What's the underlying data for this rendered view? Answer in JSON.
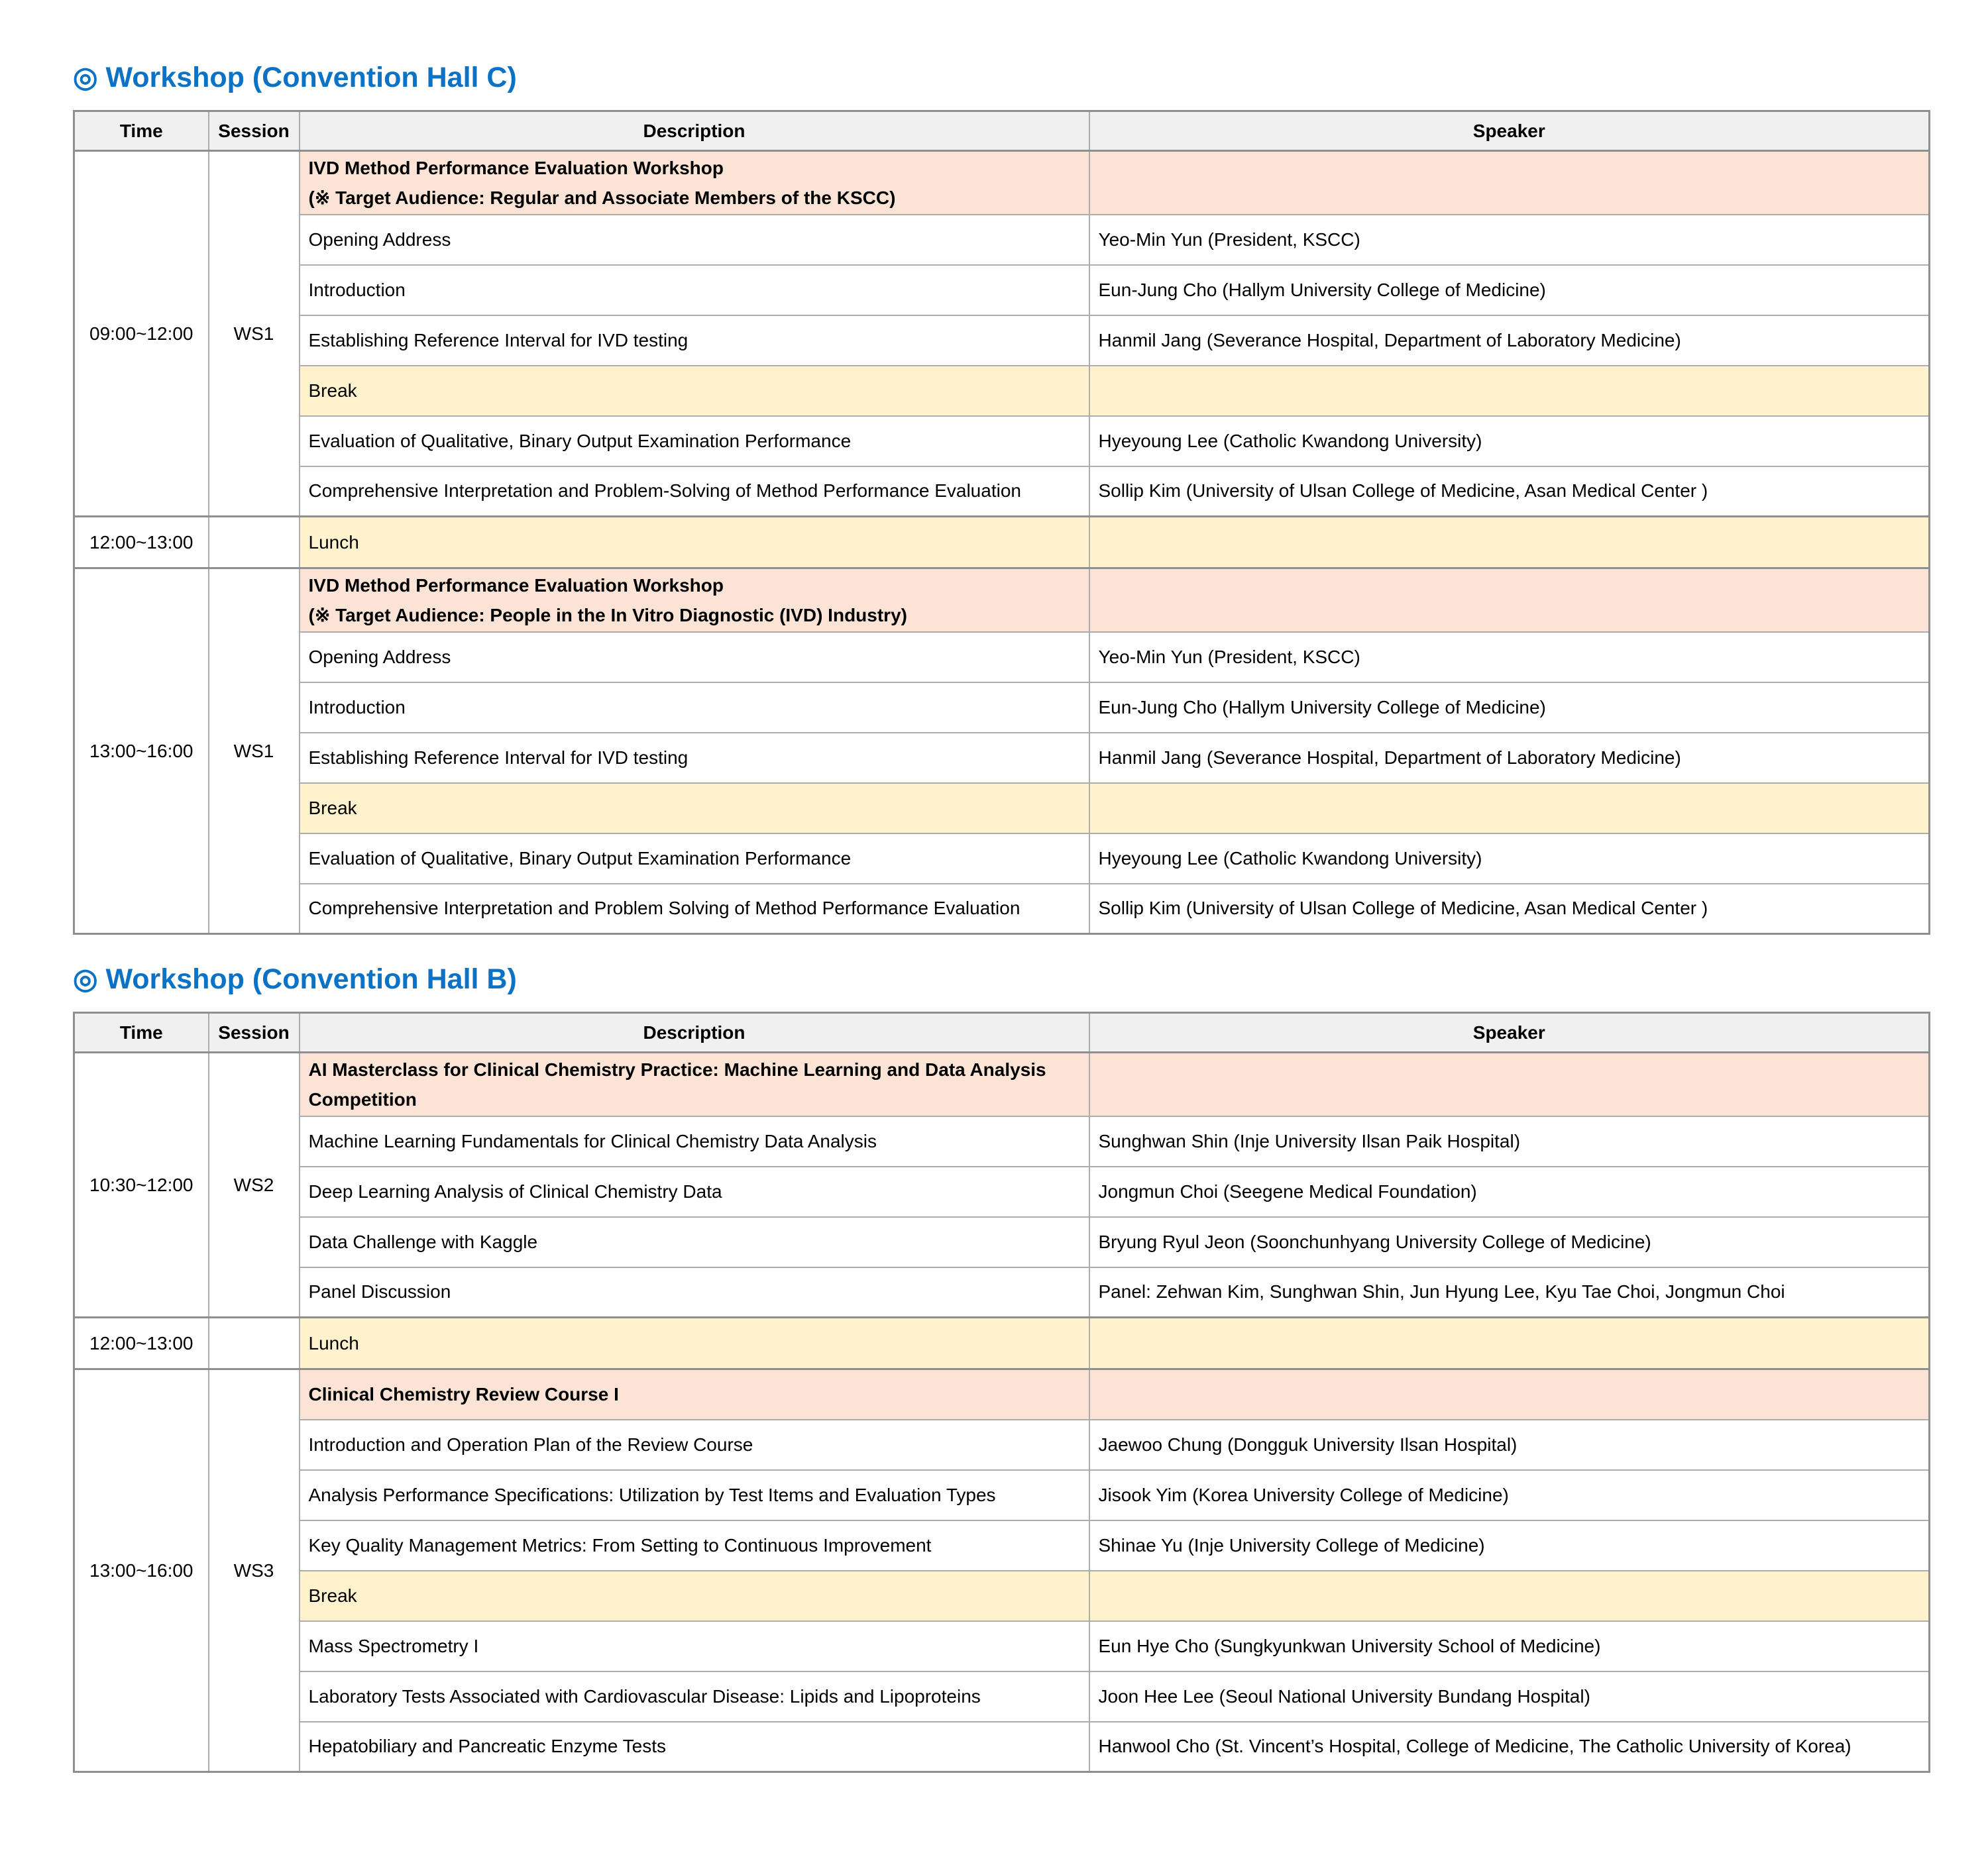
{
  "colors": {
    "title_blue": "#0c72c6",
    "session_header_pink": "#fbe4d5",
    "break_yellow": "#fff2cc",
    "column_header_grey": "#f0f0f0"
  },
  "workshop_c": {
    "title": "◎ Workshop (Convention Hall C)",
    "columns": {
      "time": "Time",
      "session": "Session",
      "description": "Description",
      "speaker": "Speaker"
    },
    "morning": {
      "time": "09:00~12:00",
      "session": "WS1",
      "header_line1": "IVD Method Performance Evaluation Workshop",
      "header_line2": "(※ Target Audience: Regular and Associate Members of the KSCC)",
      "items": [
        {
          "description": "Opening Address",
          "speaker": "Yeo-Min Yun (President, KSCC)"
        },
        {
          "description": "Introduction",
          "speaker": "Eun-Jung Cho (Hallym University College of Medicine)"
        },
        {
          "description": "Establishing Reference Interval for IVD testing",
          "speaker": "Hanmil Jang (Severance Hospital, Department of Laboratory Medicine)"
        },
        {
          "description": "Break"
        },
        {
          "description": "Evaluation of Qualitative, Binary Output Examination Performance",
          "speaker": "Hyeyoung Lee (Catholic Kwandong University)"
        },
        {
          "description": "Comprehensive Interpretation and Problem-Solving of Method Performance Evaluation",
          "speaker": "Sollip Kim (University of Ulsan College of Medicine, Asan Medical Center )"
        }
      ]
    },
    "lunch": {
      "time": "12:00~13:00",
      "session": "",
      "label": "Lunch"
    },
    "afternoon": {
      "time": "13:00~16:00",
      "session": "WS1",
      "header_line1": "IVD Method Performance Evaluation Workshop",
      "header_line2": "(※ Target Audience: People in the In Vitro Diagnostic (IVD) Industry)",
      "items": [
        {
          "description": "Opening Address",
          "speaker": "Yeo-Min Yun (President, KSCC)"
        },
        {
          "description": "Introduction",
          "speaker": "Eun-Jung Cho (Hallym University College of Medicine)"
        },
        {
          "description": "Establishing Reference Interval for IVD testing",
          "speaker": "Hanmil Jang (Severance Hospital, Department of Laboratory Medicine)"
        },
        {
          "description": "Break"
        },
        {
          "description": "Evaluation of Qualitative, Binary Output Examination Performance",
          "speaker": "Hyeyoung Lee (Catholic Kwandong University)"
        },
        {
          "description": "Comprehensive Interpretation and Problem Solving of Method Performance Evaluation",
          "speaker": "Sollip Kim (University of Ulsan College of Medicine, Asan Medical Center )"
        }
      ]
    }
  },
  "workshop_b": {
    "title": "◎ Workshop (Convention Hall B)",
    "columns": {
      "time": "Time",
      "session": "Session",
      "description": "Description",
      "speaker": "Speaker"
    },
    "morning": {
      "time": "10:30~12:00",
      "session": "WS2",
      "header_line1": "AI Masterclass for Clinical Chemistry Practice: Machine Learning and Data Analysis",
      "header_line2": "Competition",
      "items": [
        {
          "description": "Machine Learning Fundamentals for Clinical Chemistry Data Analysis",
          "speaker": "Sunghwan Shin (Inje University Ilsan Paik Hospital)"
        },
        {
          "description": "Deep Learning Analysis of Clinical Chemistry Data",
          "speaker": "Jongmun Choi (Seegene Medical Foundation)"
        },
        {
          "description": "Data Challenge with Kaggle",
          "speaker": "Bryung Ryul Jeon (Soonchunhyang University College of Medicine)"
        },
        {
          "description": "Panel Discussion",
          "speaker": "Panel: Zehwan Kim, Sunghwan Shin, Jun Hyung Lee, Kyu Tae Choi, Jongmun Choi"
        }
      ]
    },
    "lunch": {
      "time": "12:00~13:00",
      "session": "",
      "label": "Lunch"
    },
    "afternoon": {
      "time": "13:00~16:00",
      "session": "WS3",
      "header_line1": "Clinical Chemistry Review Course I",
      "items": [
        {
          "description": "Introduction and Operation Plan of the Review Course",
          "speaker": "Jaewoo Chung (Dongguk University Ilsan Hospital)"
        },
        {
          "description": "Analysis Performance Specifications: Utilization by Test Items and Evaluation Types",
          "speaker": "Jisook Yim (Korea University College of Medicine)"
        },
        {
          "description": "Key Quality Management Metrics: From Setting to Continuous Improvement",
          "speaker": "Shinae Yu (Inje University College of Medicine)"
        },
        {
          "description": "Break"
        },
        {
          "description": "Mass Spectrometry I",
          "speaker": "Eun Hye Cho (Sungkyunkwan University School of Medicine)"
        },
        {
          "description": "Laboratory Tests Associated with Cardiovascular Disease: Lipids and Lipoproteins",
          "speaker": "Joon Hee Lee (Seoul National University Bundang Hospital)"
        },
        {
          "description": "Hepatobiliary and Pancreatic Enzyme Tests",
          "speaker": "Hanwool Cho (St. Vincent’s Hospital, College of Medicine, The Catholic University of Korea)"
        }
      ]
    }
  }
}
